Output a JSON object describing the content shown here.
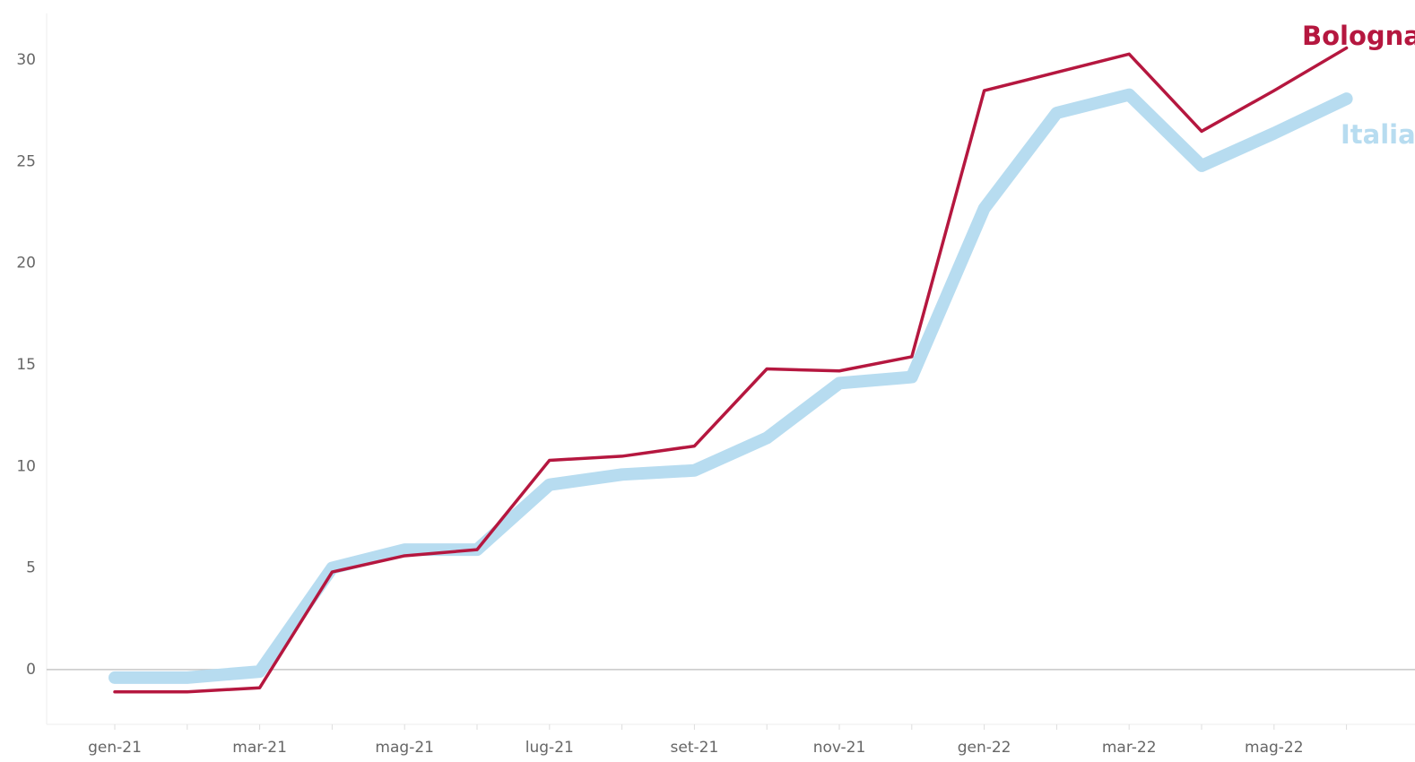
{
  "chart_data": {
    "type": "line",
    "categories": [
      "gen-21",
      null,
      "mar-21",
      null,
      "mag-21",
      null,
      "lug-21",
      null,
      "set-21",
      null,
      "nov-21",
      null,
      "gen-22",
      null,
      "mar-22",
      null,
      "mag-22",
      null
    ],
    "series": [
      {
        "name": "Italia",
        "color": "#b7dcf0",
        "values": [
          -0.4,
          -0.4,
          -0.1,
          5.0,
          5.9,
          5.9,
          9.1,
          9.6,
          9.8,
          11.4,
          14.1,
          14.4,
          22.7,
          27.4,
          28.3,
          24.8,
          26.4,
          28.1
        ]
      },
      {
        "name": "Bologna",
        "color": "#b5173f",
        "values": [
          -1.1,
          -1.1,
          -0.9,
          4.8,
          5.6,
          5.9,
          10.3,
          10.5,
          11.0,
          14.8,
          14.7,
          15.4,
          28.5,
          29.4,
          30.3,
          26.5,
          28.5,
          30.6
        ]
      }
    ],
    "ylim": [
      -2.7,
      32.3
    ],
    "yticks": [
      0,
      5,
      10,
      15,
      20,
      25,
      30
    ],
    "grid": false
  }
}
